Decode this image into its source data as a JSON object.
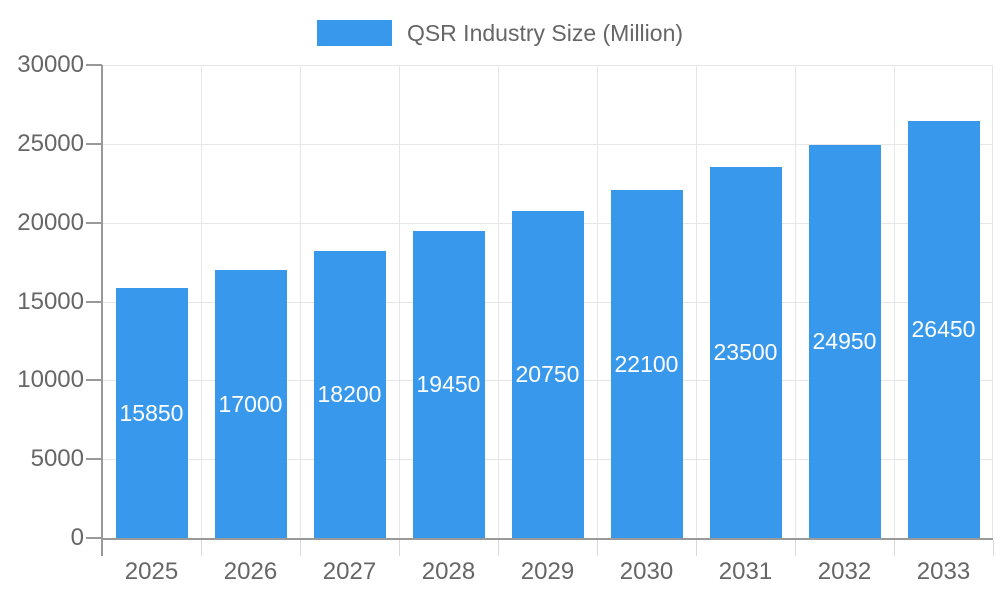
{
  "chart_data": {
    "type": "bar",
    "title": "",
    "legend_label": "QSR Industry Size (Million)",
    "legend_position": "top",
    "categories": [
      "2025",
      "2026",
      "2027",
      "2028",
      "2029",
      "2030",
      "2031",
      "2032",
      "2033"
    ],
    "series": [
      {
        "name": "QSR Industry Size (Million)",
        "values": [
          15850,
          17000,
          18200,
          19450,
          20750,
          22100,
          23500,
          24950,
          26450
        ]
      }
    ],
    "value_labels": "inside-center",
    "xlabel": "",
    "ylabel": "",
    "ylim": [
      0,
      30000
    ],
    "ytick_interval": 5000,
    "yticks": [
      0,
      5000,
      10000,
      15000,
      20000,
      25000,
      30000
    ],
    "grid": true,
    "colors": {
      "bar": "#3899ec",
      "value_label": "#ffffff",
      "axis": "#999999",
      "gridline": "#e6e6e6",
      "minor_tick": "#d9d9d9",
      "text": "#666666"
    }
  }
}
